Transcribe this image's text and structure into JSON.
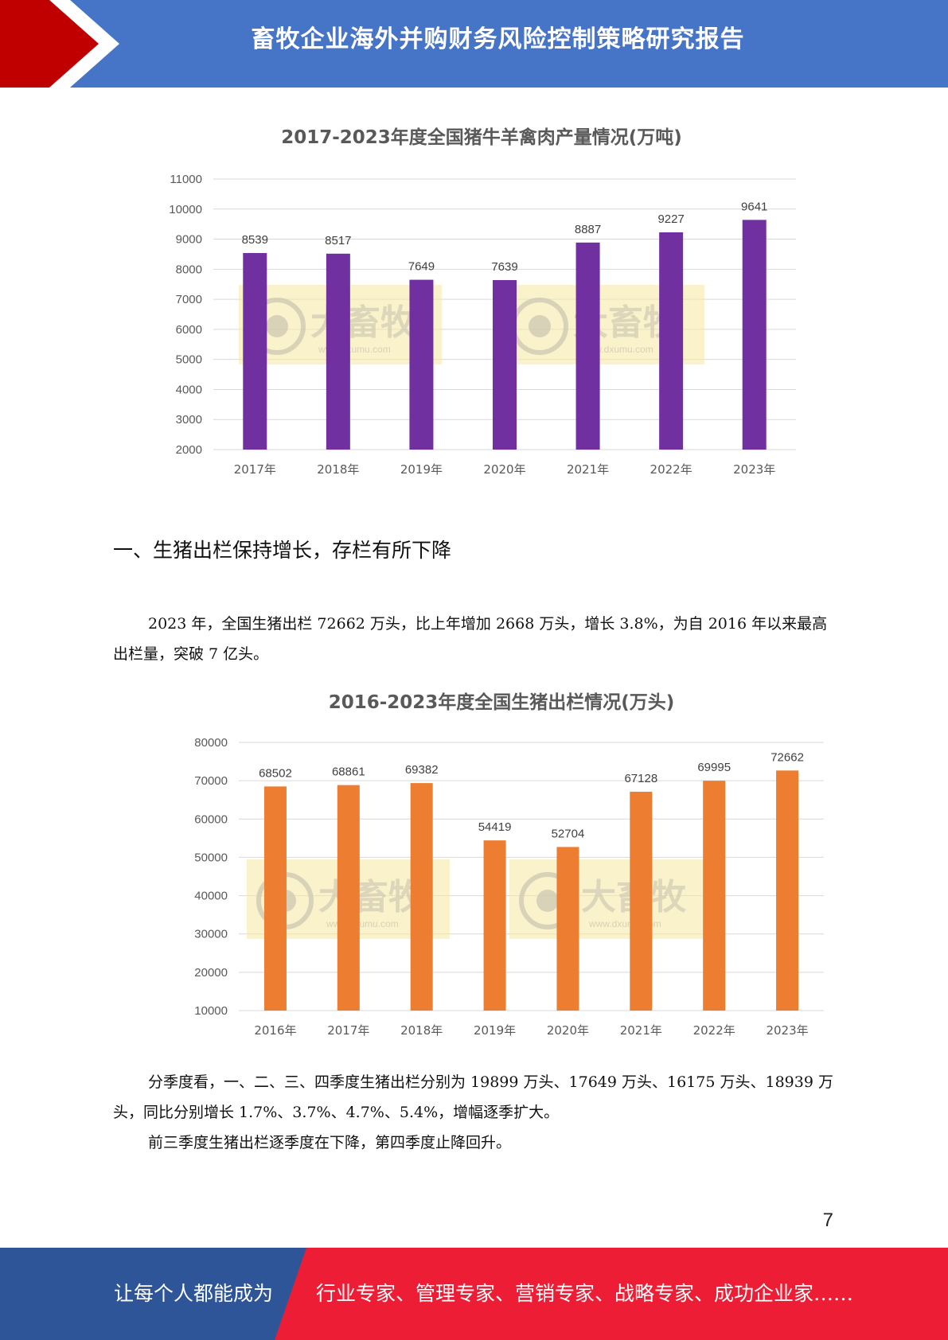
{
  "header": {
    "title": "畜牧企业海外并购财务风险控制策略研究报告"
  },
  "charts": [
    {
      "type": "bar",
      "title": "2017-2023年度全国猪牛羊禽肉产量情况(万吨)",
      "categories": [
        "2017年",
        "2018年",
        "2019年",
        "2020年",
        "2021年",
        "2022年",
        "2023年"
      ],
      "values": [
        8539,
        8517,
        7649,
        7639,
        8887,
        9227,
        9641
      ],
      "ylim": [
        2000,
        11000
      ],
      "yticks": [
        2000,
        3000,
        4000,
        5000,
        6000,
        7000,
        8000,
        9000,
        10000,
        11000
      ],
      "bar_color": "#7030a0",
      "grid": true,
      "watermark_text": "大畜牧",
      "watermark_url": "www.dxumu.com"
    },
    {
      "type": "bar",
      "title": "2016-2023年度全国生猪出栏情况(万头)",
      "categories": [
        "2016年",
        "2017年",
        "2018年",
        "2019年",
        "2020年",
        "2021年",
        "2022年",
        "2023年"
      ],
      "values": [
        68502,
        68861,
        69382,
        54419,
        52704,
        67128,
        69995,
        72662
      ],
      "ylim": [
        10000,
        80000
      ],
      "yticks": [
        10000,
        20000,
        30000,
        40000,
        50000,
        60000,
        70000,
        80000
      ],
      "bar_color": "#ed7d31",
      "grid": true,
      "watermark_text": "大畜牧",
      "watermark_url": "www.dxumu.com"
    }
  ],
  "section": {
    "title": "一、生猪出栏保持增长，存栏有所下降"
  },
  "paragraphs": {
    "p1": "2023 年，全国生猪出栏 72662 万头，比上年增加 2668 万头，增长 3.8%，为自 2016 年以来最高出栏量，突破 7 亿头。",
    "p2": "分季度看，一、二、三、四季度生猪出栏分别为 19899 万头、17649 万头、16175 万头、18939 万头，同比分别增长 1.7%、3.7%、4.7%、5.4%，增幅逐季扩大。",
    "p3": "前三季度生猪出栏逐季度在下降，第四季度止降回升。"
  },
  "page_number": "7",
  "footer": {
    "slogan_left": "让每个人都能成为",
    "slogan_right": "行业专家、管理专家、营销专家、战略专家、成功企业家……",
    "color_left": "#2e5597",
    "color_right": "#ec1d34"
  }
}
